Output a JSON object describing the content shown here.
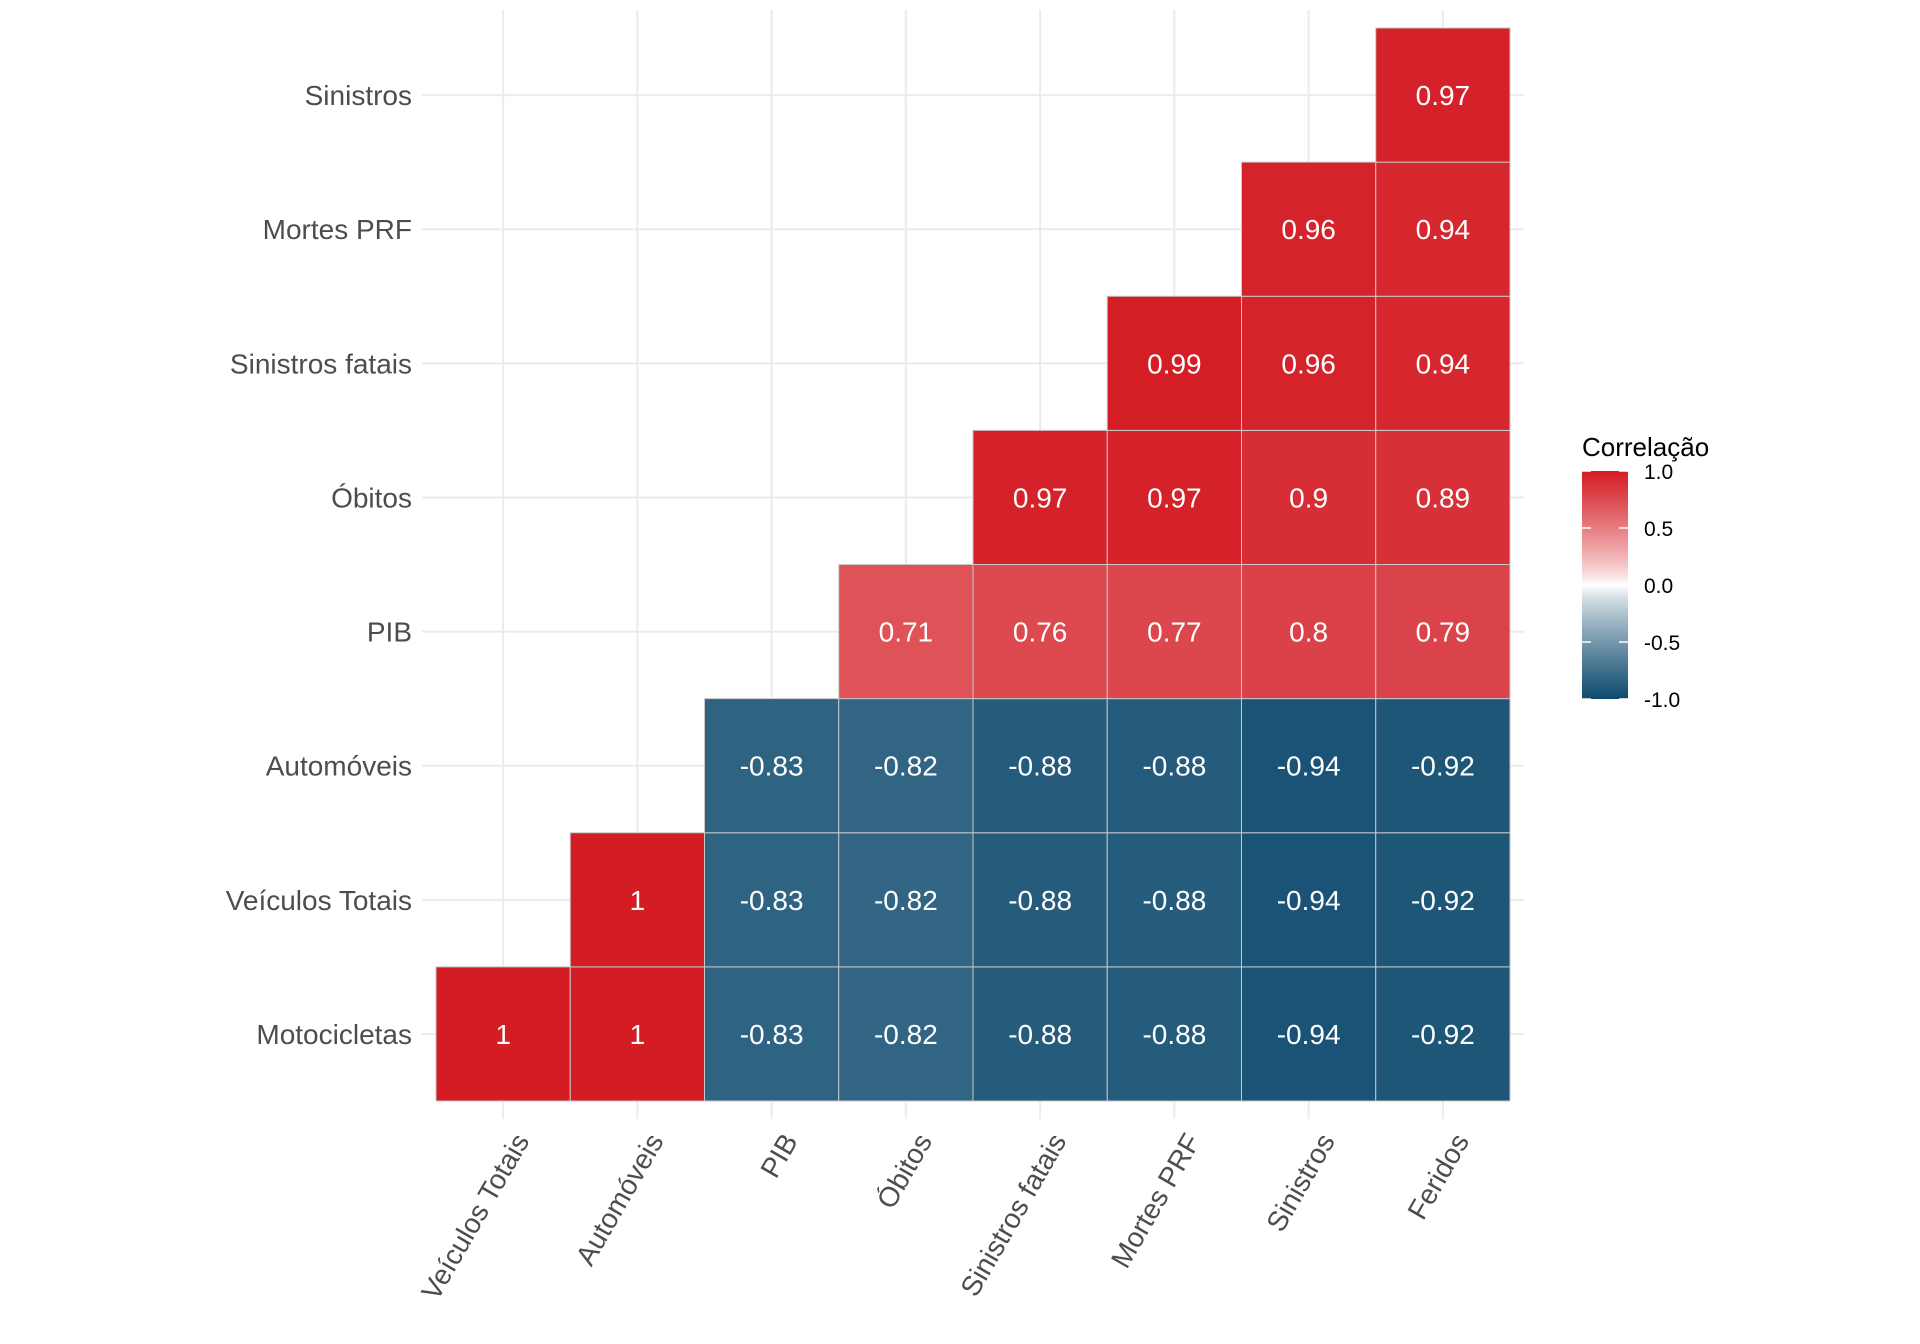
{
  "chart_data": {
    "type": "heatmap",
    "title": "",
    "xlabel": "",
    "ylabel": "",
    "x_categories": [
      "Veículos Totais",
      "Automóveis",
      "PIB",
      "Óbitos",
      "Sinistros fatais",
      "Mortes PRF",
      "Sinistros",
      "Feridos"
    ],
    "y_categories": [
      "Motocicletas",
      "Veículos Totais",
      "Automóveis",
      "PIB",
      "Óbitos",
      "Sinistros fatais",
      "Mortes PRF",
      "Sinistros"
    ],
    "cells": [
      {
        "x": "Veículos Totais",
        "y": "Motocicletas",
        "value": 1,
        "label": "1"
      },
      {
        "x": "Automóveis",
        "y": "Motocicletas",
        "value": 1,
        "label": "1"
      },
      {
        "x": "PIB",
        "y": "Motocicletas",
        "value": -0.83,
        "label": "-0.83"
      },
      {
        "x": "Óbitos",
        "y": "Motocicletas",
        "value": -0.82,
        "label": "-0.82"
      },
      {
        "x": "Sinistros fatais",
        "y": "Motocicletas",
        "value": -0.88,
        "label": "-0.88"
      },
      {
        "x": "Mortes PRF",
        "y": "Motocicletas",
        "value": -0.88,
        "label": "-0.88"
      },
      {
        "x": "Sinistros",
        "y": "Motocicletas",
        "value": -0.94,
        "label": "-0.94"
      },
      {
        "x": "Feridos",
        "y": "Motocicletas",
        "value": -0.92,
        "label": "-0.92"
      },
      {
        "x": "Automóveis",
        "y": "Veículos Totais",
        "value": 1,
        "label": "1"
      },
      {
        "x": "PIB",
        "y": "Veículos Totais",
        "value": -0.83,
        "label": "-0.83"
      },
      {
        "x": "Óbitos",
        "y": "Veículos Totais",
        "value": -0.82,
        "label": "-0.82"
      },
      {
        "x": "Sinistros fatais",
        "y": "Veículos Totais",
        "value": -0.88,
        "label": "-0.88"
      },
      {
        "x": "Mortes PRF",
        "y": "Veículos Totais",
        "value": -0.88,
        "label": "-0.88"
      },
      {
        "x": "Sinistros",
        "y": "Veículos Totais",
        "value": -0.94,
        "label": "-0.94"
      },
      {
        "x": "Feridos",
        "y": "Veículos Totais",
        "value": -0.92,
        "label": "-0.92"
      },
      {
        "x": "PIB",
        "y": "Automóveis",
        "value": -0.83,
        "label": "-0.83"
      },
      {
        "x": "Óbitos",
        "y": "Automóveis",
        "value": -0.82,
        "label": "-0.82"
      },
      {
        "x": "Sinistros fatais",
        "y": "Automóveis",
        "value": -0.88,
        "label": "-0.88"
      },
      {
        "x": "Mortes PRF",
        "y": "Automóveis",
        "value": -0.88,
        "label": "-0.88"
      },
      {
        "x": "Sinistros",
        "y": "Automóveis",
        "value": -0.94,
        "label": "-0.94"
      },
      {
        "x": "Feridos",
        "y": "Automóveis",
        "value": -0.92,
        "label": "-0.92"
      },
      {
        "x": "Óbitos",
        "y": "PIB",
        "value": 0.71,
        "label": "0.71"
      },
      {
        "x": "Sinistros fatais",
        "y": "PIB",
        "value": 0.76,
        "label": "0.76"
      },
      {
        "x": "Mortes PRF",
        "y": "PIB",
        "value": 0.77,
        "label": "0.77"
      },
      {
        "x": "Sinistros",
        "y": "PIB",
        "value": 0.8,
        "label": "0.8"
      },
      {
        "x": "Feridos",
        "y": "PIB",
        "value": 0.79,
        "label": "0.79"
      },
      {
        "x": "Sinistros fatais",
        "y": "Óbitos",
        "value": 0.97,
        "label": "0.97"
      },
      {
        "x": "Mortes PRF",
        "y": "Óbitos",
        "value": 0.97,
        "label": "0.97"
      },
      {
        "x": "Sinistros",
        "y": "Óbitos",
        "value": 0.9,
        "label": "0.9"
      },
      {
        "x": "Feridos",
        "y": "Óbitos",
        "value": 0.89,
        "label": "0.89"
      },
      {
        "x": "Mortes PRF",
        "y": "Sinistros fatais",
        "value": 0.99,
        "label": "0.99"
      },
      {
        "x": "Sinistros",
        "y": "Sinistros fatais",
        "value": 0.96,
        "label": "0.96"
      },
      {
        "x": "Feridos",
        "y": "Sinistros fatais",
        "value": 0.94,
        "label": "0.94"
      },
      {
        "x": "Sinistros",
        "y": "Mortes PRF",
        "value": 0.96,
        "label": "0.96"
      },
      {
        "x": "Feridos",
        "y": "Mortes PRF",
        "value": 0.94,
        "label": "0.94"
      },
      {
        "x": "Feridos",
        "y": "Sinistros",
        "value": 0.97,
        "label": "0.97"
      }
    ],
    "color_scale": {
      "low": "#0E4A6E",
      "mid": "#FFFFFF",
      "high": "#D41C24",
      "limits": [
        -1,
        1
      ]
    },
    "legend": {
      "title": "Correlação",
      "ticks": [
        1.0,
        0.5,
        0.0,
        -0.5,
        -1.0
      ],
      "tick_labels": [
        "1.0",
        "0.5",
        "0.0",
        "-0.5",
        "-1.0"
      ],
      "placement": "right"
    },
    "grid": true
  }
}
